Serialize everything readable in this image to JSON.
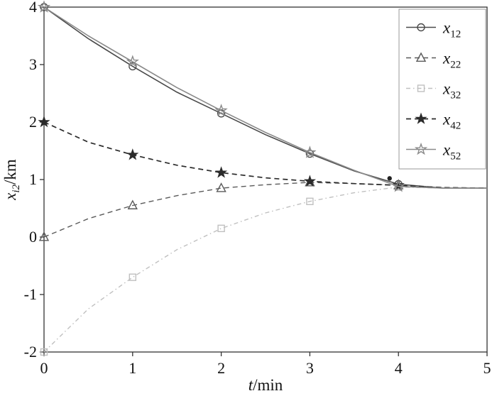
{
  "figure": {
    "background": "#ffffff",
    "axis_color": "#333333",
    "tick_label_color": "#111111",
    "xlabel_italic": "t",
    "xlabel_rest": "/min",
    "ylabel_italic": "x",
    "ylabel_sub": "i2",
    "ylabel_rest": "/km"
  },
  "chart_data": {
    "type": "line",
    "title": "",
    "xlabel": "t/min",
    "ylabel": "x_i2/km",
    "xlim": [
      0,
      5
    ],
    "ylim": [
      -2,
      4
    ],
    "xticks": [
      0,
      1,
      2,
      3,
      4,
      5
    ],
    "yticks": [
      -2,
      -1,
      0,
      1,
      2,
      3,
      4
    ],
    "grid": false,
    "legend_position": "top-right",
    "x": [
      0,
      0.5,
      1,
      1.5,
      2,
      2.5,
      3,
      3.5,
      4,
      4.5,
      5
    ],
    "marker_x": [
      0,
      1,
      2,
      3,
      4
    ],
    "series": [
      {
        "name": "x12",
        "label_base": "x",
        "label_sub": "12",
        "marker": "circle-open",
        "line": "solid",
        "color": "#4a4a4a",
        "width": 1.6,
        "values": [
          4.0,
          3.45,
          2.97,
          2.52,
          2.15,
          1.78,
          1.45,
          1.15,
          0.92,
          0.85,
          0.85
        ]
      },
      {
        "name": "x22",
        "label_base": "x",
        "label_sub": "22",
        "marker": "triangle-open",
        "line": "dashed",
        "color": "#5a5a5a",
        "width": 1.4,
        "values": [
          0.0,
          0.32,
          0.55,
          0.72,
          0.85,
          0.91,
          0.95,
          0.93,
          0.9,
          0.86,
          0.85
        ]
      },
      {
        "name": "x32",
        "label_base": "x",
        "label_sub": "32",
        "marker": "square-open",
        "line": "dashdot",
        "color": "#c0c0c0",
        "width": 1.4,
        "values": [
          -2.0,
          -1.25,
          -0.7,
          -0.22,
          0.15,
          0.42,
          0.62,
          0.77,
          0.87,
          0.85,
          0.85
        ]
      },
      {
        "name": "x42",
        "label_base": "x",
        "label_sub": "42",
        "marker": "star-filled",
        "line": "dashed",
        "color": "#2b2b2b",
        "width": 1.7,
        "values": [
          2.0,
          1.65,
          1.43,
          1.25,
          1.12,
          1.03,
          0.97,
          0.93,
          0.9,
          0.86,
          0.85
        ]
      },
      {
        "name": "x52",
        "label_base": "x",
        "label_sub": "52",
        "marker": "star-open",
        "line": "solid",
        "color": "#8a8a8a",
        "width": 1.6,
        "values": [
          4.0,
          3.5,
          3.05,
          2.6,
          2.2,
          1.82,
          1.47,
          1.16,
          0.88,
          0.85,
          0.85
        ]
      }
    ],
    "annotation_point": {
      "x": 3.9,
      "y": 1.02,
      "color": "#222222"
    }
  }
}
